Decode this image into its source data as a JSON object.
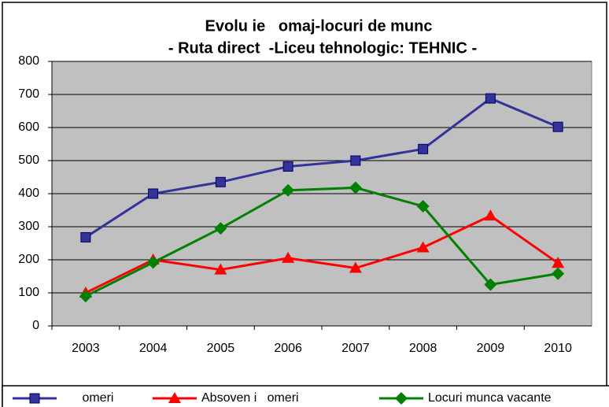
{
  "chart_data": {
    "type": "line",
    "title": "Evolu ie   omaj-locuri de munc",
    "subtitle": "- Ruta direct  -Liceu tehnologic: TEHNIC -",
    "categories": [
      "2003",
      "2004",
      "2005",
      "2006",
      "2007",
      "2008",
      "2009",
      "2010"
    ],
    "series": [
      {
        "name": " omeri",
        "color": "#333399",
        "marker": "square",
        "values": [
          268,
          400,
          435,
          482,
          500,
          535,
          688,
          602
        ]
      },
      {
        "name": "Absoven i   omeri",
        "color": "#ff0000",
        "marker": "triangle",
        "values": [
          100,
          200,
          170,
          205,
          175,
          237,
          333,
          190
        ]
      },
      {
        "name": "Locuri munca vacante",
        "color": "#008000",
        "marker": "diamond",
        "values": [
          90,
          192,
          295,
          410,
          418,
          362,
          125,
          158
        ]
      }
    ],
    "ylim": [
      0,
      800
    ],
    "yticks": [
      0,
      100,
      200,
      300,
      400,
      500,
      600,
      700,
      800
    ],
    "grid": true,
    "legend": "bottom"
  }
}
